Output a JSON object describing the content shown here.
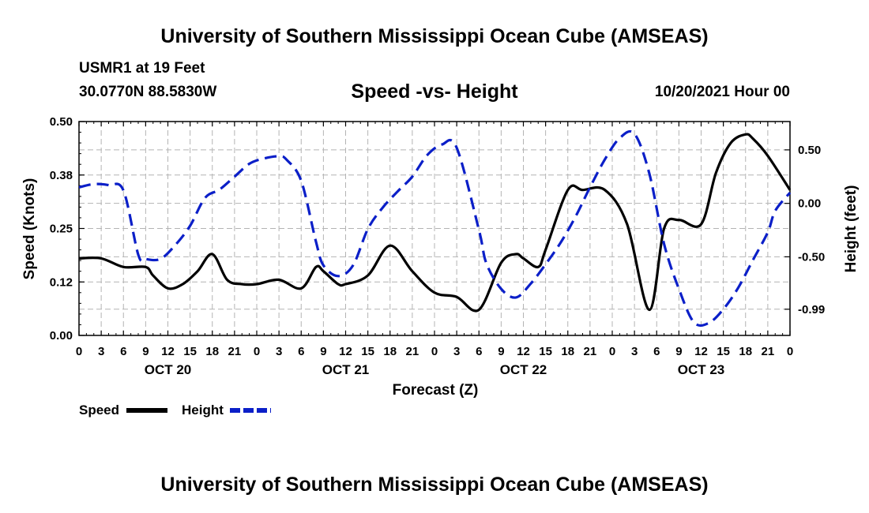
{
  "header": {
    "title": "University of Southern Mississippi Ocean Cube (AMSEAS)",
    "station": "USMR1 at 19 Feet",
    "coords": "30.0770N  88.5830W",
    "date": "10/20/2021 Hour 00"
  },
  "footer": {
    "title": "University of Southern Mississippi Ocean Cube (AMSEAS)"
  },
  "legend": {
    "speed_label": "Speed",
    "height_label": "Height"
  },
  "colors": {
    "speed": "#000000",
    "height": "#0b1fc8",
    "grid": "#b4b4b4"
  },
  "chart_data": {
    "type": "line",
    "title": "Speed -vs- Height",
    "xlabel": "Forecast (Z)",
    "ylabel": "Speed (Knots)",
    "y2label": "Height (feet)",
    "xlim": [
      0,
      96
    ],
    "ylim": [
      0,
      0.5
    ],
    "y2lim": [
      -1.235,
      0.765
    ],
    "yticks": [
      0,
      0.125,
      0.25,
      0.375,
      0.5
    ],
    "yticklabels": [
      "0.00",
      "0.12",
      "0.25",
      "0.38",
      "0.50"
    ],
    "y2ticks": [
      -0.99,
      -0.5,
      0,
      0.5
    ],
    "y2ticklabels": [
      "-0.99",
      "-0.50",
      "0.00",
      "0.50"
    ],
    "xtick_hours": [
      0,
      3,
      6,
      9,
      12,
      15,
      18,
      21,
      24,
      27,
      30,
      33,
      36,
      39,
      42,
      45,
      48,
      51,
      54,
      57,
      60,
      63,
      66,
      69,
      72,
      75,
      78,
      81,
      84,
      87,
      90,
      93,
      96
    ],
    "xticklabels": [
      "0",
      "3",
      "6",
      "9",
      "12",
      "15",
      "18",
      "21",
      "0",
      "3",
      "6",
      "9",
      "12",
      "15",
      "18",
      "21",
      "0",
      "3",
      "6",
      "9",
      "12",
      "15",
      "18",
      "21",
      "0",
      "3",
      "6",
      "9",
      "12",
      "15",
      "18",
      "21",
      "0"
    ],
    "day_labels": [
      {
        "hour": 12,
        "label": "OCT 20"
      },
      {
        "hour": 36,
        "label": "OCT 21"
      },
      {
        "hour": 60,
        "label": "OCT 22"
      },
      {
        "hour": 84,
        "label": "OCT 23"
      }
    ],
    "series": [
      {
        "name": "Speed",
        "axis": "left",
        "style": "solid",
        "x": [
          0,
          3,
          6,
          9,
          10,
          12,
          14,
          16,
          18,
          20,
          22,
          24,
          27,
          30,
          32,
          33,
          35,
          36,
          39,
          42,
          45,
          48,
          51,
          54,
          57,
          59,
          60,
          62,
          63,
          66,
          68,
          71,
          74,
          77,
          79,
          81,
          84,
          86,
          88,
          90,
          91,
          93,
          96
        ],
        "values": [
          0.18,
          0.18,
          0.16,
          0.16,
          0.14,
          0.11,
          0.12,
          0.15,
          0.19,
          0.13,
          0.12,
          0.12,
          0.13,
          0.11,
          0.16,
          0.15,
          0.12,
          0.12,
          0.14,
          0.21,
          0.15,
          0.1,
          0.09,
          0.06,
          0.17,
          0.19,
          0.18,
          0.16,
          0.2,
          0.34,
          0.34,
          0.34,
          0.26,
          0.06,
          0.25,
          0.27,
          0.26,
          0.38,
          0.45,
          0.47,
          0.46,
          0.42,
          0.34
        ]
      },
      {
        "name": "Height",
        "axis": "right",
        "style": "dashed",
        "x": [
          0,
          2,
          4,
          6,
          8,
          9,
          11,
          13,
          15,
          17,
          19,
          21,
          23,
          25,
          27,
          28,
          30,
          32,
          33,
          35,
          37,
          39,
          41,
          43,
          45,
          47,
          49,
          51,
          54,
          55,
          57,
          59,
          61,
          63,
          65,
          67,
          69,
          71,
          73,
          75,
          77,
          79,
          81,
          83,
          85,
          87,
          89,
          91,
          93,
          94,
          96
        ],
        "values": [
          0.15,
          0.18,
          0.17,
          0.12,
          -0.48,
          -0.52,
          -0.52,
          -0.39,
          -0.21,
          0.05,
          0.13,
          0.25,
          0.37,
          0.42,
          0.44,
          0.41,
          0.21,
          -0.36,
          -0.58,
          -0.68,
          -0.58,
          -0.24,
          -0.04,
          0.11,
          0.25,
          0.45,
          0.55,
          0.52,
          -0.25,
          -0.56,
          -0.8,
          -0.88,
          -0.75,
          -0.57,
          -0.37,
          -0.13,
          0.15,
          0.41,
          0.61,
          0.65,
          0.28,
          -0.38,
          -0.8,
          -1.11,
          -1.12,
          -0.99,
          -0.79,
          -0.53,
          -0.27,
          -0.07,
          0.1
        ]
      }
    ]
  }
}
